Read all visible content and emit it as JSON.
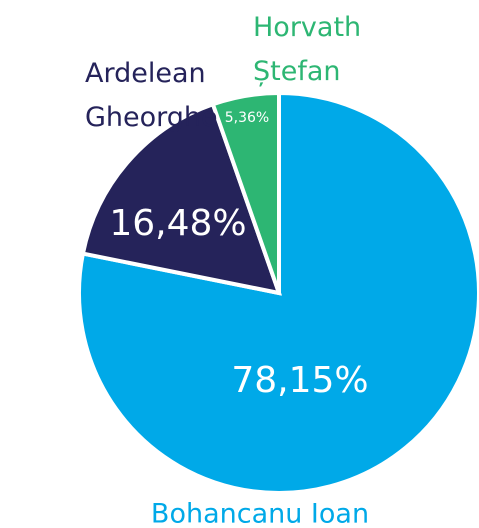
{
  "chart_data": {
    "type": "pie",
    "categories": [
      "Bohancanu Ioan",
      "Ardelean Gheorghe",
      "Horvath Ștefan"
    ],
    "values": [
      78.15,
      16.48,
      5.36
    ],
    "value_labels": [
      "78,15%",
      "16,48%",
      "5,36%"
    ],
    "colors": [
      "#00a9e8",
      "#25235a",
      "#2db673"
    ]
  }
}
